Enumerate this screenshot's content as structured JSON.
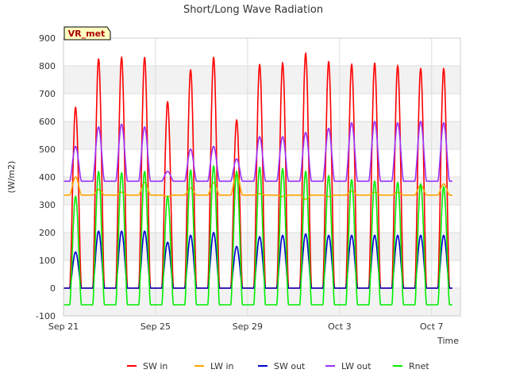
{
  "chart_data": {
    "type": "line",
    "title": "Short/Long Wave Radiation",
    "xlabel": "Time",
    "ylabel": "(W/m2)",
    "station_label": "VR_met",
    "x_unit": "day index from Sep 21 (0 = Sep 21 00:00)",
    "xlim": [
      0,
      17.25
    ],
    "ylim": [
      -100,
      900
    ],
    "yticks": [
      -100,
      0,
      100,
      200,
      300,
      400,
      500,
      600,
      700,
      800,
      900
    ],
    "xticks": [
      {
        "value": 0,
        "label": "Sep 21"
      },
      {
        "value": 4,
        "label": "Sep 25"
      },
      {
        "value": 8,
        "label": "Sep 29"
      },
      {
        "value": 12,
        "label": "Oct 3"
      },
      {
        "value": 16,
        "label": "Oct 7"
      }
    ],
    "grid": true,
    "legend_placement": "bottom",
    "day_peaks": [
      {
        "day": 0,
        "sw_in": 650,
        "sw_out": 130,
        "lw_in": 400,
        "lw_out": 510,
        "rnet": 330
      },
      {
        "day": 1,
        "sw_in": 825,
        "sw_out": 205,
        "lw_in": 355,
        "lw_out": 580,
        "rnet": 420
      },
      {
        "day": 2,
        "sw_in": 830,
        "sw_out": 205,
        "lw_in": 345,
        "lw_out": 590,
        "rnet": 415
      },
      {
        "day": 3,
        "sw_in": 830,
        "sw_out": 205,
        "lw_in": 380,
        "lw_out": 580,
        "rnet": 420
      },
      {
        "day": 4,
        "sw_in": 670,
        "sw_out": 165,
        "lw_in": 330,
        "lw_out": 420,
        "rnet": 330
      },
      {
        "day": 5,
        "sw_in": 785,
        "sw_out": 190,
        "lw_in": 360,
        "lw_out": 500,
        "rnet": 425
      },
      {
        "day": 6,
        "sw_in": 830,
        "sw_out": 200,
        "lw_in": 380,
        "lw_out": 510,
        "rnet": 440
      },
      {
        "day": 7,
        "sw_in": 605,
        "sw_out": 150,
        "lw_in": 410,
        "lw_out": 465,
        "rnet": 420
      },
      {
        "day": 8,
        "sw_in": 805,
        "sw_out": 185,
        "lw_in": 340,
        "lw_out": 545,
        "rnet": 435
      },
      {
        "day": 9,
        "sw_in": 810,
        "sw_out": 190,
        "lw_in": 330,
        "lw_out": 545,
        "rnet": 430
      },
      {
        "day": 10,
        "sw_in": 845,
        "sw_out": 195,
        "lw_in": 320,
        "lw_out": 560,
        "rnet": 420
      },
      {
        "day": 11,
        "sw_in": 815,
        "sw_out": 190,
        "lw_in": 330,
        "lw_out": 575,
        "rnet": 405
      },
      {
        "day": 12,
        "sw_in": 805,
        "sw_out": 190,
        "lw_in": 350,
        "lw_out": 595,
        "rnet": 390
      },
      {
        "day": 13,
        "sw_in": 810,
        "sw_out": 190,
        "lw_in": 345,
        "lw_out": 600,
        "rnet": 385
      },
      {
        "day": 14,
        "sw_in": 800,
        "sw_out": 190,
        "lw_in": 345,
        "lw_out": 595,
        "rnet": 380
      },
      {
        "day": 15,
        "sw_in": 790,
        "sw_out": 190,
        "lw_in": 370,
        "lw_out": 600,
        "rnet": 375
      },
      {
        "day": 16,
        "sw_in": 790,
        "sw_out": 190,
        "lw_in": 375,
        "lw_out": 595,
        "rnet": 365
      }
    ],
    "night_baselines": {
      "sw_in": 0,
      "sw_out": 0,
      "lw_in": 335,
      "lw_out": 385,
      "rnet": -60
    },
    "series": [
      {
        "name": "SW in",
        "key": "sw_in",
        "color": "#ff0000"
      },
      {
        "name": "LW in",
        "key": "lw_in",
        "color": "#ffa500"
      },
      {
        "name": "SW out",
        "key": "sw_out",
        "color": "#0000cc"
      },
      {
        "name": "LW out",
        "key": "lw_out",
        "color": "#9b30ff"
      },
      {
        "name": "Rnet",
        "key": "rnet",
        "color": "#00ee00"
      }
    ]
  }
}
